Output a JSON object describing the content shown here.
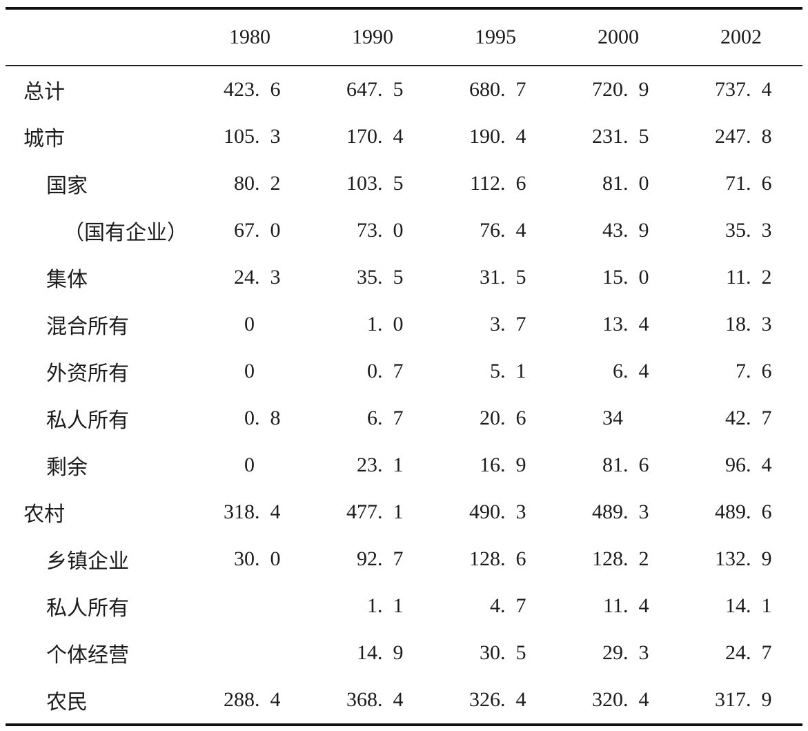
{
  "table": {
    "corner_label": "",
    "columns": [
      "1980",
      "1990",
      "1995",
      "2000",
      "2002"
    ],
    "rows": [
      {
        "label": "总计",
        "indent": 0,
        "values": [
          "423.6",
          "647.5",
          "680.7",
          "720.9",
          "737.4"
        ]
      },
      {
        "label": "城市",
        "indent": 0,
        "values": [
          "105.3",
          "170.4",
          "190.4",
          "231.5",
          "247.8"
        ]
      },
      {
        "label": "国家",
        "indent": 1,
        "values": [
          "80.2",
          "103.5",
          "112.6",
          "81.0",
          "71.6"
        ]
      },
      {
        "label": "（国有企业）",
        "indent": 2,
        "values": [
          "67.0",
          "73.0",
          "76.4",
          "43.9",
          "35.3"
        ]
      },
      {
        "label": "集体",
        "indent": 1,
        "values": [
          "24.3",
          "35.5",
          "31.5",
          "15.0",
          "11.2"
        ]
      },
      {
        "label": "混合所有",
        "indent": 1,
        "values": [
          "0",
          "1.0",
          "3.7",
          "13.4",
          "18.3"
        ]
      },
      {
        "label": "外资所有",
        "indent": 1,
        "values": [
          "0",
          "0.7",
          "5.1",
          "6.4",
          "7.6"
        ]
      },
      {
        "label": "私人所有",
        "indent": 1,
        "values": [
          "0.8",
          "6.7",
          "20.6",
          "34",
          "42.7"
        ]
      },
      {
        "label": "剩余",
        "indent": 1,
        "values": [
          "0",
          "23.1",
          "16.9",
          "81.6",
          "96.4"
        ]
      },
      {
        "label": "农村",
        "indent": 0,
        "values": [
          "318.4",
          "477.1",
          "490.3",
          "489.3",
          "489.6"
        ]
      },
      {
        "label": "乡镇企业",
        "indent": 1,
        "values": [
          "30.0",
          "92.7",
          "128.6",
          "128.2",
          "132.9"
        ]
      },
      {
        "label": "私人所有",
        "indent": 1,
        "values": [
          "",
          "1.1",
          "4.7",
          "11.4",
          "14.1"
        ]
      },
      {
        "label": "个体经营",
        "indent": 1,
        "values": [
          "",
          "14.9",
          "30.5",
          "29.3",
          "24.7"
        ]
      },
      {
        "label": "农民",
        "indent": 1,
        "values": [
          "288.4",
          "368.4",
          "326.4",
          "320.4",
          "317.9"
        ]
      }
    ]
  },
  "colors": {
    "background": "#ffffff",
    "text": "#1c1c1c",
    "rule_heavy": "#101010",
    "rule_light": "#1e1e1e"
  }
}
